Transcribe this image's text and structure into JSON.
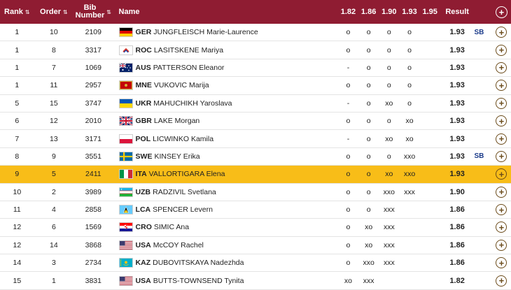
{
  "header": {
    "rank": "Rank",
    "order": "Order",
    "bib_line1": "Bib",
    "bib_line2": "Number",
    "name": "Name",
    "heights": [
      "1.82",
      "1.86",
      "1.90",
      "1.93",
      "1.95"
    ],
    "result": "Result"
  },
  "rows": [
    {
      "rank": "1",
      "order": "10",
      "bib": "2109",
      "noc": "GER",
      "name": "JUNGFLEISCH Marie-Laurence",
      "flag": "germany",
      "h": [
        "o",
        "o",
        "o",
        "o",
        ""
      ],
      "result": "1.93",
      "note": "SB",
      "highlight": false
    },
    {
      "rank": "1",
      "order": "8",
      "bib": "3317",
      "noc": "ROC",
      "name": "LASITSKENE Mariya",
      "flag": "roc",
      "h": [
        "o",
        "o",
        "o",
        "o",
        ""
      ],
      "result": "1.93",
      "note": "",
      "highlight": false
    },
    {
      "rank": "1",
      "order": "7",
      "bib": "1069",
      "noc": "AUS",
      "name": "PATTERSON Eleanor",
      "flag": "australia",
      "h": [
        "-",
        "o",
        "o",
        "o",
        ""
      ],
      "result": "1.93",
      "note": "",
      "highlight": false
    },
    {
      "rank": "1",
      "order": "11",
      "bib": "2957",
      "noc": "MNE",
      "name": "VUKOVIC Marija",
      "flag": "montenegro",
      "h": [
        "o",
        "o",
        "o",
        "o",
        ""
      ],
      "result": "1.93",
      "note": "",
      "highlight": false
    },
    {
      "rank": "5",
      "order": "15",
      "bib": "3747",
      "noc": "UKR",
      "name": "MAHUCHIKH Yaroslava",
      "flag": "ukraine",
      "h": [
        "-",
        "o",
        "xo",
        "o",
        ""
      ],
      "result": "1.93",
      "note": "",
      "highlight": false
    },
    {
      "rank": "6",
      "order": "12",
      "bib": "2010",
      "noc": "GBR",
      "name": "LAKE Morgan",
      "flag": "gb",
      "h": [
        "o",
        "o",
        "o",
        "xo",
        ""
      ],
      "result": "1.93",
      "note": "",
      "highlight": false
    },
    {
      "rank": "7",
      "order": "13",
      "bib": "3171",
      "noc": "POL",
      "name": "LICWINKO Kamila",
      "flag": "poland",
      "h": [
        "-",
        "o",
        "xo",
        "xo",
        ""
      ],
      "result": "1.93",
      "note": "",
      "highlight": false
    },
    {
      "rank": "8",
      "order": "9",
      "bib": "3551",
      "noc": "SWE",
      "name": "KINSEY Erika",
      "flag": "sweden",
      "h": [
        "o",
        "o",
        "o",
        "xxo",
        ""
      ],
      "result": "1.93",
      "note": "SB",
      "highlight": false
    },
    {
      "rank": "9",
      "order": "5",
      "bib": "2411",
      "noc": "ITA",
      "name": "VALLORTIGARA Elena",
      "flag": "italy",
      "h": [
        "o",
        "o",
        "xo",
        "xxo",
        ""
      ],
      "result": "1.93",
      "note": "",
      "highlight": true
    },
    {
      "rank": "10",
      "order": "2",
      "bib": "3989",
      "noc": "UZB",
      "name": "RADZIVIL Svetlana",
      "flag": "uzbekistan",
      "h": [
        "o",
        "o",
        "xxo",
        "xxx",
        ""
      ],
      "result": "1.90",
      "note": "",
      "highlight": false
    },
    {
      "rank": "11",
      "order": "4",
      "bib": "2858",
      "noc": "LCA",
      "name": "SPENCER Levern",
      "flag": "stlucia",
      "h": [
        "o",
        "o",
        "xxx",
        "",
        ""
      ],
      "result": "1.86",
      "note": "",
      "highlight": false
    },
    {
      "rank": "12",
      "order": "6",
      "bib": "1569",
      "noc": "CRO",
      "name": "SIMIC Ana",
      "flag": "croatia",
      "h": [
        "o",
        "xo",
        "xxx",
        "",
        ""
      ],
      "result": "1.86",
      "note": "",
      "highlight": false
    },
    {
      "rank": "12",
      "order": "14",
      "bib": "3868",
      "noc": "USA",
      "name": "McCOY Rachel",
      "flag": "usa",
      "h": [
        "o",
        "xo",
        "xxx",
        "",
        ""
      ],
      "result": "1.86",
      "note": "",
      "highlight": false
    },
    {
      "rank": "14",
      "order": "3",
      "bib": "2734",
      "noc": "KAZ",
      "name": "DUBOVITSKAYA Nadezhda",
      "flag": "kazakhstan",
      "h": [
        "o",
        "xxo",
        "xxx",
        "",
        ""
      ],
      "result": "1.86",
      "note": "",
      "highlight": false
    },
    {
      "rank": "15",
      "order": "1",
      "bib": "3831",
      "noc": "USA",
      "name": "BUTTS-TOWNSEND Tynita",
      "flag": "usa",
      "h": [
        "xo",
        "xxx",
        "",
        "",
        ""
      ],
      "result": "1.82",
      "note": "",
      "highlight": false
    }
  ],
  "colors": {
    "header_bg": "#8f1c32",
    "highlight_bg": "#f8bd18",
    "note_color": "#1a3a8a"
  },
  "icons": {
    "expand": "plus-circle-icon",
    "sort": "sort-arrows-icon"
  }
}
